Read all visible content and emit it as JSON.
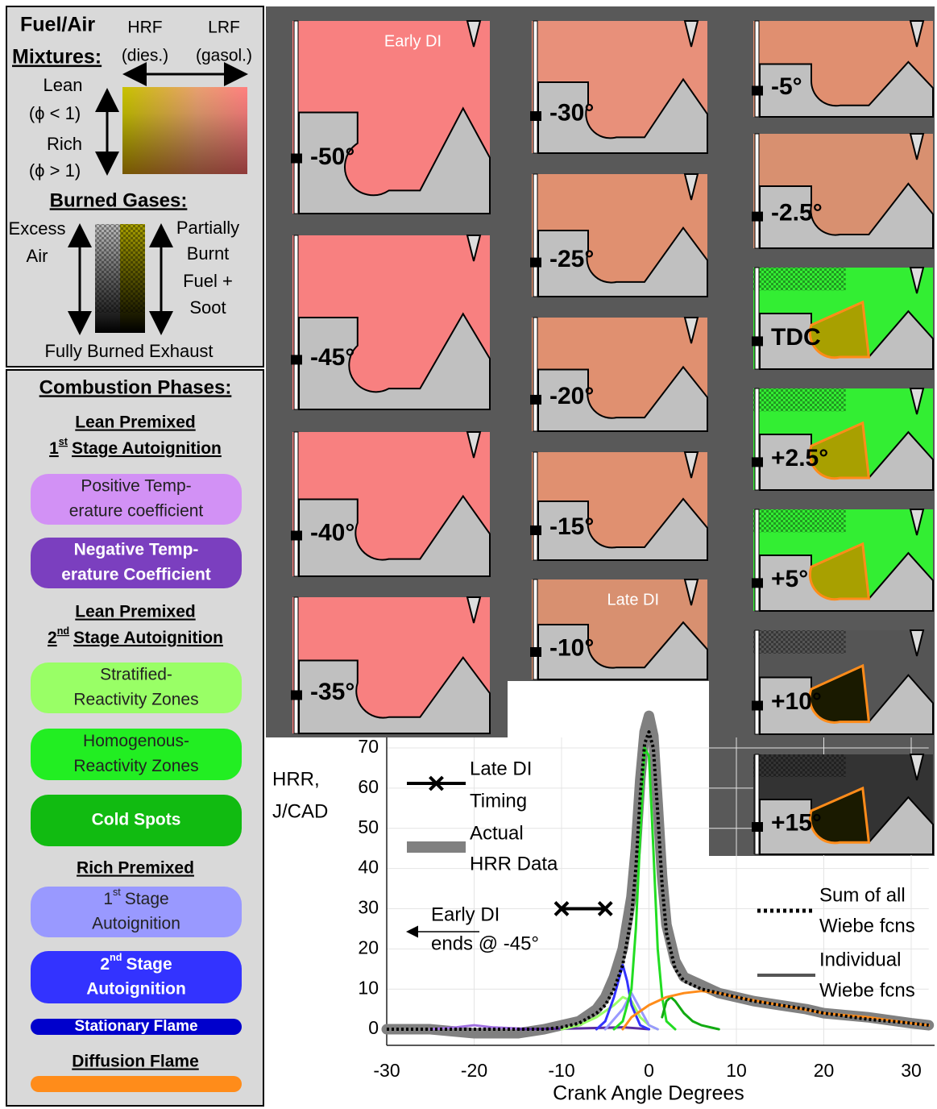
{
  "fuel_air": {
    "title": [
      "Fuel/Air",
      "Mixtures:"
    ],
    "hrf": "HRF",
    "hrf_note": "(dies.)",
    "lrf": "LRF",
    "lrf_note": "(gasol.)",
    "lean": "Lean",
    "lean_phi": "(ϕ < 1)",
    "rich": "Rich",
    "rich_phi": "(ϕ > 1)"
  },
  "burned_gases": {
    "title": "Burned Gases:",
    "excess": [
      "Excess",
      "Air"
    ],
    "partial": [
      "Partially",
      "Burnt",
      "Fuel +",
      "Soot"
    ],
    "fully": "Fully Burned Exhaust"
  },
  "phases": {
    "title": "Combustion Phases:",
    "groups": [
      {
        "heading": "Lean Premixed",
        "stage": {
          "num": "1",
          "sup": "st",
          "rest": "Stage Autoignition"
        }
      },
      {
        "heading": "Lean Premixed",
        "stage": {
          "num": "2",
          "sup": "nd",
          "rest": "Stage Autoignition"
        }
      },
      {
        "heading": "Rich Premixed"
      },
      {
        "heading": "Diffusion Flame"
      }
    ],
    "pills": [
      {
        "lines": [
          "Positive Temp-",
          "erature coefficient"
        ]
      },
      {
        "lines": [
          "Negative Temp-",
          "erature Coefficient"
        ]
      },
      {
        "lines": [
          "Stratified-",
          "Reactivity Zones"
        ]
      },
      {
        "lines": [
          "Homogenous-",
          "Reactivity Zones"
        ]
      },
      {
        "lines": [
          "Cold Spots"
        ]
      },
      {
        "lines": [
          {
            "num": "1",
            "sup": "st",
            "rest": "Stage"
          },
          "Autoignition"
        ]
      },
      {
        "lines": [
          {
            "num": "2",
            "sup": "nd",
            "rest": "Stage"
          },
          "Autoignition"
        ]
      },
      {
        "lines": [
          "Stationary Flame"
        ]
      },
      {
        "lines": []
      }
    ]
  },
  "panels": [
    {
      "label": "-50°",
      "note": "Early DI"
    },
    {
      "label": "-45°"
    },
    {
      "label": "-40°"
    },
    {
      "label": "-35°"
    },
    {
      "label": "-30°"
    },
    {
      "label": "-25°"
    },
    {
      "label": "-20°"
    },
    {
      "label": "-15°"
    },
    {
      "label": "-10°",
      "note": "Late DI"
    },
    {
      "label": "-5°"
    },
    {
      "label": "-2.5°"
    },
    {
      "label": "TDC"
    },
    {
      "label": "+2.5°"
    },
    {
      "label": "+5°"
    },
    {
      "label": "+10°"
    },
    {
      "label": "+15°"
    }
  ],
  "chart_data": {
    "type": "line",
    "ylabel": [
      "HRR,",
      "J/CAD"
    ],
    "xlabel": "Crank Angle Degrees",
    "xlim": [
      -30,
      32
    ],
    "ylim": [
      -4,
      80
    ],
    "xticks": [
      -30,
      -20,
      -10,
      0,
      10,
      20,
      30
    ],
    "yticks": [
      0,
      10,
      20,
      30,
      40,
      50,
      60,
      70
    ],
    "grid": true,
    "annotation": [
      "Early DI",
      "ends @ -45°"
    ],
    "series": [
      {
        "name": [
          "Late DI",
          "Timing"
        ],
        "color": "#000000",
        "x": [
          -10,
          -5
        ],
        "values": [
          30,
          30
        ]
      },
      {
        "name": [
          "Actual",
          "HRR Data"
        ],
        "color": "#808080",
        "x": [
          -30,
          -25,
          -20,
          -15,
          -12,
          -10,
          -8,
          -6,
          -5,
          -4,
          -3,
          -2,
          -1.5,
          -1,
          -0.5,
          0,
          0.5,
          1,
          1.5,
          2,
          3,
          4,
          5,
          6,
          8,
          10,
          12,
          15,
          18,
          20,
          25,
          30,
          32
        ],
        "values": [
          0,
          0,
          -1,
          -1,
          0,
          1,
          2,
          5,
          8,
          13,
          20,
          33,
          45,
          62,
          74,
          78,
          73,
          56,
          38,
          26,
          17,
          13,
          12,
          11,
          9,
          8,
          7,
          6,
          5,
          4,
          3,
          1.5,
          1
        ]
      },
      {
        "name": [
          "Sum of all",
          "Wiebe fcns"
        ],
        "color": "#000000",
        "x": [
          -30,
          -25,
          -20,
          -15,
          -12,
          -10,
          -8,
          -6,
          -5,
          -4,
          -3,
          -2,
          -1.5,
          -1,
          -0.5,
          0,
          0.5,
          1,
          1.5,
          2,
          3,
          4,
          5,
          6,
          8,
          10,
          12,
          15,
          18,
          20,
          25,
          30,
          32
        ],
        "values": [
          0,
          0,
          0,
          0,
          0,
          0.5,
          1.5,
          4,
          6,
          10,
          16,
          28,
          40,
          58,
          71,
          74,
          70,
          54,
          36,
          24,
          15,
          12,
          11,
          10,
          9,
          8,
          7,
          6,
          5,
          4,
          2.5,
          1.5,
          1
        ]
      },
      {
        "name": [
          "Individual",
          "Wiebe fcns"
        ],
        "color": "#555555",
        "components": [
          {
            "color": "#a070e0",
            "x": [
              -25,
              -22,
              -20,
              -18,
              -15,
              -13
            ],
            "values": [
              0,
              0.5,
              1,
              0.5,
              0.2,
              0
            ]
          },
          {
            "color": "#5a2ca0",
            "x": [
              -15,
              -8,
              -3,
              0
            ],
            "values": [
              0,
              0.2,
              0.5,
              0
            ]
          },
          {
            "color": "#99ff66",
            "x": [
              -10,
              -8,
              -6,
              -4,
              -3,
              -2,
              -1,
              0,
              1
            ],
            "values": [
              0,
              1,
              3,
              6,
              8,
              7,
              3,
              1,
              0
            ]
          },
          {
            "color": "#9999ff",
            "x": [
              -5,
              -3,
              -2,
              -1,
              0,
              1
            ],
            "values": [
              0,
              5,
              9,
              5,
              1,
              0
            ]
          },
          {
            "color": "#3333ff",
            "x": [
              -6,
              -5,
              -4,
              -3,
              -2.5,
              -2,
              -1,
              0
            ],
            "values": [
              0,
              2,
              8,
              16,
              12,
              6,
              1,
              0
            ]
          },
          {
            "color": "#22dd22",
            "x": [
              -4,
              -3,
              -2,
              -1.5,
              -1,
              -0.5,
              0,
              0.5,
              1,
              1.5,
              2,
              3
            ],
            "values": [
              0,
              2,
              10,
              25,
              48,
              70,
              68,
              45,
              20,
              8,
              2,
              0
            ]
          },
          {
            "color": "#11aa11",
            "x": [
              1.5,
              2,
              2.5,
              3,
              4,
              5,
              6,
              8
            ],
            "values": [
              3,
              7,
              8,
              7,
              4,
              2,
              1,
              0
            ]
          },
          {
            "color": "#ff8c1a",
            "x": [
              -3,
              -2,
              0,
              2,
              4,
              6,
              8,
              10,
              15,
              20,
              25,
              30,
              32
            ],
            "values": [
              0,
              3,
              6,
              8,
              9,
              9.5,
              9,
              8,
              6,
              4,
              3,
              1.5,
              1
            ]
          }
        ]
      }
    ]
  }
}
